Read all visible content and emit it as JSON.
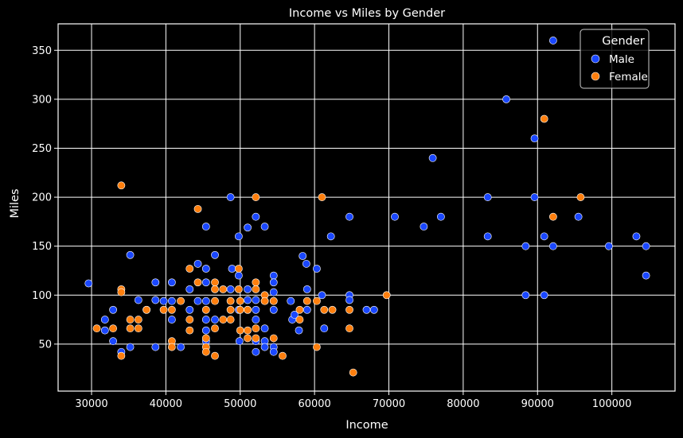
{
  "chart_data": {
    "type": "scatter",
    "title": "Income vs Miles by Gender",
    "xlabel": "Income",
    "ylabel": "Miles",
    "xlim": [
      25500,
      108500
    ],
    "ylim": [
      2,
      377
    ],
    "xticks": [
      30000,
      40000,
      50000,
      60000,
      70000,
      80000,
      90000,
      100000
    ],
    "yticks": [
      50,
      100,
      150,
      200,
      250,
      300,
      350
    ],
    "grid": true,
    "background": "#000000",
    "grid_color": "#ffffff",
    "legend": {
      "title": "Gender",
      "placement": "top-right"
    },
    "series": [
      {
        "name": "Male",
        "color": "#1a47ff",
        "points": [
          [
            29600,
            112
          ],
          [
            31800,
            75
          ],
          [
            31800,
            64
          ],
          [
            32900,
            85
          ],
          [
            32900,
            53
          ],
          [
            34000,
            42
          ],
          [
            35200,
            141
          ],
          [
            35200,
            47
          ],
          [
            36300,
            95
          ],
          [
            37400,
            85
          ],
          [
            38600,
            113
          ],
          [
            38600,
            95
          ],
          [
            38600,
            47
          ],
          [
            39700,
            94
          ],
          [
            40800,
            94
          ],
          [
            40800,
            75
          ],
          [
            40800,
            113
          ],
          [
            42000,
            47
          ],
          [
            43200,
            106
          ],
          [
            43200,
            85
          ],
          [
            44300,
            132
          ],
          [
            44300,
            94
          ],
          [
            45400,
            170
          ],
          [
            45400,
            127
          ],
          [
            45400,
            113
          ],
          [
            45400,
            94
          ],
          [
            45400,
            75
          ],
          [
            45400,
            64
          ],
          [
            45400,
            53
          ],
          [
            46600,
            141
          ],
          [
            46600,
            75
          ],
          [
            48700,
            200
          ],
          [
            48700,
            106
          ],
          [
            48900,
            127
          ],
          [
            49800,
            160
          ],
          [
            49800,
            120
          ],
          [
            49800,
            85
          ],
          [
            49900,
            53
          ],
          [
            51000,
            169
          ],
          [
            51000,
            106
          ],
          [
            51000,
            95
          ],
          [
            51000,
            85
          ],
          [
            52100,
            180
          ],
          [
            52100,
            95
          ],
          [
            52100,
            85
          ],
          [
            52100,
            75
          ],
          [
            52100,
            53
          ],
          [
            52100,
            42
          ],
          [
            53300,
            170
          ],
          [
            53300,
            94
          ],
          [
            53300,
            66
          ],
          [
            53300,
            53
          ],
          [
            53300,
            47
          ],
          [
            54500,
            120
          ],
          [
            54500,
            113
          ],
          [
            54500,
            103
          ],
          [
            54500,
            94
          ],
          [
            54500,
            85
          ],
          [
            54500,
            47
          ],
          [
            54500,
            42
          ],
          [
            56800,
            94
          ],
          [
            57000,
            75
          ],
          [
            57300,
            80
          ],
          [
            57900,
            64
          ],
          [
            58400,
            140
          ],
          [
            58900,
            132
          ],
          [
            59000,
            106
          ],
          [
            59000,
            85
          ],
          [
            60300,
            127
          ],
          [
            61000,
            100
          ],
          [
            61300,
            66
          ],
          [
            62200,
            160
          ],
          [
            64700,
            180
          ],
          [
            64700,
            100
          ],
          [
            64700,
            95
          ],
          [
            67000,
            85
          ],
          [
            68000,
            85
          ],
          [
            70800,
            180
          ],
          [
            74700,
            170
          ],
          [
            75900,
            240
          ],
          [
            77000,
            180
          ],
          [
            83300,
            200
          ],
          [
            83300,
            160
          ],
          [
            85800,
            300
          ],
          [
            88400,
            150
          ],
          [
            88400,
            100
          ],
          [
            89600,
            260
          ],
          [
            89600,
            200
          ],
          [
            90900,
            160
          ],
          [
            90900,
            100
          ],
          [
            92100,
            360
          ],
          [
            92100,
            150
          ],
          [
            95500,
            180
          ],
          [
            99600,
            150
          ],
          [
            103300,
            160
          ],
          [
            104600,
            150
          ],
          [
            104600,
            120
          ]
        ]
      },
      {
        "name": "Female",
        "color": "#ff7f0e",
        "points": [
          [
            30700,
            66
          ],
          [
            32900,
            66
          ],
          [
            34000,
            212
          ],
          [
            34000,
            106
          ],
          [
            34000,
            103
          ],
          [
            34000,
            38
          ],
          [
            35200,
            75
          ],
          [
            35200,
            66
          ],
          [
            36300,
            75
          ],
          [
            36300,
            66
          ],
          [
            37400,
            85
          ],
          [
            39700,
            85
          ],
          [
            40800,
            85
          ],
          [
            40800,
            53
          ],
          [
            40800,
            47
          ],
          [
            42000,
            94
          ],
          [
            43200,
            127
          ],
          [
            43200,
            75
          ],
          [
            43200,
            64
          ],
          [
            44300,
            188
          ],
          [
            44300,
            113
          ],
          [
            45400,
            85
          ],
          [
            45400,
            56
          ],
          [
            45400,
            47
          ],
          [
            45400,
            42
          ],
          [
            46600,
            113
          ],
          [
            46600,
            106
          ],
          [
            46600,
            94
          ],
          [
            46600,
            66
          ],
          [
            46600,
            38
          ],
          [
            47700,
            106
          ],
          [
            47700,
            75
          ],
          [
            48700,
            94
          ],
          [
            48700,
            85
          ],
          [
            48700,
            75
          ],
          [
            49800,
            127
          ],
          [
            49800,
            106
          ],
          [
            50000,
            94
          ],
          [
            50000,
            85
          ],
          [
            50000,
            64
          ],
          [
            51000,
            85
          ],
          [
            51000,
            64
          ],
          [
            51000,
            56
          ],
          [
            52100,
            200
          ],
          [
            52100,
            113
          ],
          [
            52100,
            106
          ],
          [
            52100,
            66
          ],
          [
            52100,
            56
          ],
          [
            53300,
            100
          ],
          [
            53300,
            94
          ],
          [
            54500,
            94
          ],
          [
            54500,
            56
          ],
          [
            55700,
            38
          ],
          [
            58000,
            85
          ],
          [
            58000,
            75
          ],
          [
            59000,
            94
          ],
          [
            60300,
            94
          ],
          [
            60300,
            47
          ],
          [
            61000,
            200
          ],
          [
            61300,
            85
          ],
          [
            62400,
            85
          ],
          [
            64700,
            85
          ],
          [
            64700,
            66
          ],
          [
            65200,
            21
          ],
          [
            69700,
            100
          ],
          [
            90900,
            280
          ],
          [
            92100,
            180
          ],
          [
            95800,
            200
          ]
        ]
      }
    ]
  }
}
